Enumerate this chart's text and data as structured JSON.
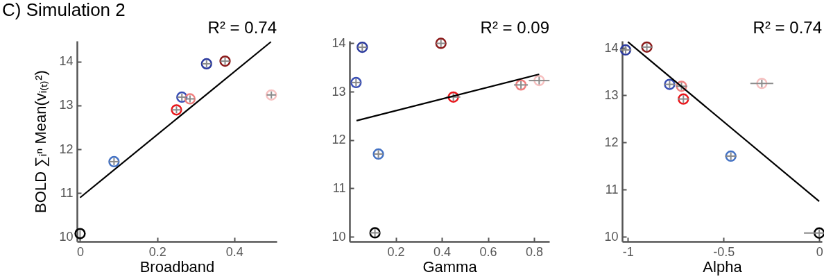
{
  "chart_data": [
    {
      "type": "scatter",
      "title": "C) Simulation 2",
      "xlabel": "Broadband",
      "ylabel": "BOLD ∑ᵢⁿ Mean(vᵢ₍ₜ₎²)",
      "annotations": [
        "R² = 0.74"
      ],
      "xlim": [
        -0.008,
        0.51
      ],
      "ylim": [
        9.9,
        14.47
      ],
      "xticks": [
        0,
        0.2,
        0.4
      ],
      "yticks": [
        10,
        11,
        12,
        13,
        14
      ],
      "series": [
        {
          "type": "scatter",
          "x": [
            0,
            0.088,
            0.264,
            0.328,
            0.25,
            0.285,
            0.496,
            0.376
          ],
          "values": [
            10.08,
            11.72,
            13.19,
            13.95,
            12.9,
            13.15,
            13.24,
            14.01
          ],
          "colors": [
            "#000000",
            "#4472c4",
            "#3a4fb5",
            "#2b3a9e",
            "#e8161b",
            "#f08080",
            "#f7c0c0",
            "#8b1a1a"
          ],
          "errors": [
            0.08,
            0.08,
            0.08,
            0.08,
            0.08,
            0.08,
            0.08,
            0.08
          ],
          "xerrors": [
            null,
            0.012,
            0.012,
            0.012,
            0.012,
            0.012,
            0.012,
            0.012
          ],
          "marker": "circle"
        },
        {
          "type": "line",
          "x": [
            0,
            0.495
          ],
          "values": [
            10.9,
            14.45
          ],
          "color": "#000000"
        }
      ]
    },
    {
      "type": "scatter",
      "xlabel": "Gamma",
      "annotations": [
        "R² = 0.09"
      ],
      "xlim": [
        0,
        0.866
      ],
      "ylim": [
        9.9,
        14.05
      ],
      "xticks": [
        0.2,
        0.4,
        0.6,
        0.8
      ],
      "yticks": [
        10,
        11,
        12,
        13,
        14
      ],
      "series": [
        {
          "type": "scatter",
          "x": [
            0.11,
            0.125,
            0.028,
            0.055,
            0.45,
            0.743,
            0.822,
            0.396
          ],
          "values": [
            10.08,
            11.71,
            13.19,
            13.92,
            12.89,
            13.14,
            13.23,
            14.0
          ],
          "colors": [
            "#000000",
            "#4472c4",
            "#3a4fb5",
            "#2b3a9e",
            "#e8161b",
            "#f08080",
            "#f7c0c0",
            "#8b1a1a"
          ],
          "errors": [
            0.08,
            0.08,
            0.08,
            0.08,
            0.08,
            0.08,
            0.08,
            0.08
          ],
          "xerrors": [
            0.025,
            0.02,
            0.02,
            0.02,
            0.03,
            0.03,
            0.045,
            0.02
          ],
          "marker": "circle"
        },
        {
          "type": "line",
          "x": [
            0.03,
            0.822
          ],
          "values": [
            12.4,
            13.36
          ],
          "color": "#000000"
        }
      ]
    },
    {
      "type": "scatter",
      "xlabel": "Alpha",
      "annotations": [
        "R² = 0.74"
      ],
      "xlim": [
        -1.03,
        0.014
      ],
      "ylim": [
        9.9,
        14.15
      ],
      "xticks": [
        -1,
        -0.5,
        0
      ],
      "yticks": [
        10,
        11,
        12,
        13,
        14
      ],
      "series": [
        {
          "type": "scatter",
          "x": [
            0,
            -0.462,
            -0.782,
            -1.012,
            -0.71,
            -0.72,
            -0.3,
            -0.901
          ],
          "values": [
            10.08,
            11.71,
            13.23,
            13.96,
            12.92,
            13.19,
            13.25,
            14.02
          ],
          "colors": [
            "#000000",
            "#4472c4",
            "#3a4fb5",
            "#2b3a9e",
            "#e8161b",
            "#f08080",
            "#f7c0c0",
            "#8b1a1a"
          ],
          "errors": [
            0.08,
            0.08,
            0.08,
            0.08,
            0.08,
            0.08,
            0.08,
            0.08
          ],
          "xerrors": [
            0.08,
            0.03,
            0.03,
            0.03,
            0.03,
            0.03,
            0.06,
            0.03
          ],
          "marker": "circle"
        },
        {
          "type": "line",
          "x": [
            -1.0,
            0
          ],
          "values": [
            14.13,
            10.75
          ],
          "color": "#000000"
        }
      ]
    }
  ]
}
